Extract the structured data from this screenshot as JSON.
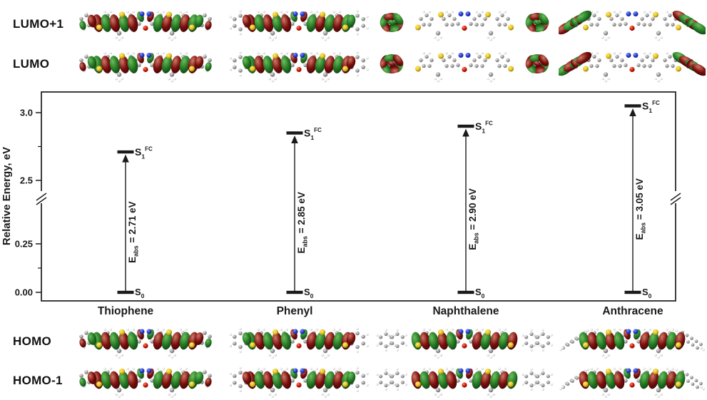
{
  "figure": {
    "row_labels": {
      "top": [
        "LUMO+1",
        "LUMO"
      ],
      "bottom": [
        "HOMO",
        "HOMO-1"
      ]
    },
    "molecules": [
      {
        "name": "Thiophene",
        "end_group": "thiophene",
        "lumo_orbitals": "core",
        "homo_orbitals": "core"
      },
      {
        "name": "Phenyl",
        "end_group": "phenyl",
        "lumo_orbitals": "core",
        "homo_orbitals": "core"
      },
      {
        "name": "Naphthalene",
        "end_group": "naphthalene",
        "lumo_orbitals": "ends",
        "homo_orbitals": "core"
      },
      {
        "name": "Anthracene",
        "end_group": "anthracene",
        "lumo_orbitals": "ends",
        "homo_orbitals": "core"
      }
    ]
  },
  "chart_data": {
    "type": "energy_level_diagram",
    "categories": [
      "Thiophene",
      "Phenyl",
      "Naphthalene",
      "Anthracene"
    ],
    "series": [
      {
        "name": "S0 ground state (eV)",
        "values": [
          0.0,
          0.0,
          0.0,
          0.0
        ]
      },
      {
        "name": "S1 FC excited state E_abs (eV)",
        "values": [
          2.71,
          2.85,
          2.9,
          3.05
        ]
      }
    ],
    "annotations": [
      "E_abs = 2.71 eV",
      "E_abs = 2.85 eV",
      "E_abs = 2.90 eV",
      "E_abs = 3.05 eV"
    ],
    "ylabel": "Relative Energy, eV",
    "yticks": [
      {
        "value": 0.0,
        "label": "0.00"
      },
      {
        "value": 0.25,
        "label": "0.25"
      },
      {
        "value": 2.5,
        "label": "2.5"
      },
      {
        "value": 3.0,
        "label": "3.0"
      }
    ],
    "minor_yticks": [
      0.125,
      2.75
    ],
    "axis_break": {
      "between": [
        0.25,
        2.5
      ],
      "sides": [
        "left",
        "right"
      ]
    },
    "ylim": [
      0.0,
      3.2
    ],
    "grid": false,
    "legend": false,
    "state_labels": {
      "ground_base": "S",
      "ground_sub": "0",
      "excited_base": "S",
      "excited_sub": "1",
      "excited_sup": "FC"
    },
    "eabs_label_parts": {
      "base": "E",
      "sub": "abs",
      "equals": " = ",
      "unit": " eV"
    }
  },
  "colors": {
    "lobe_green": "#257a25",
    "lobe_red": "#7c0f0f",
    "sulfur": "#e3c31e",
    "oxygen": "#cc1500",
    "nitrogen": "#2438cc",
    "carbon": "#9a9a9a",
    "hydrogen": "#ececec",
    "axis": "#1a1a1a"
  }
}
